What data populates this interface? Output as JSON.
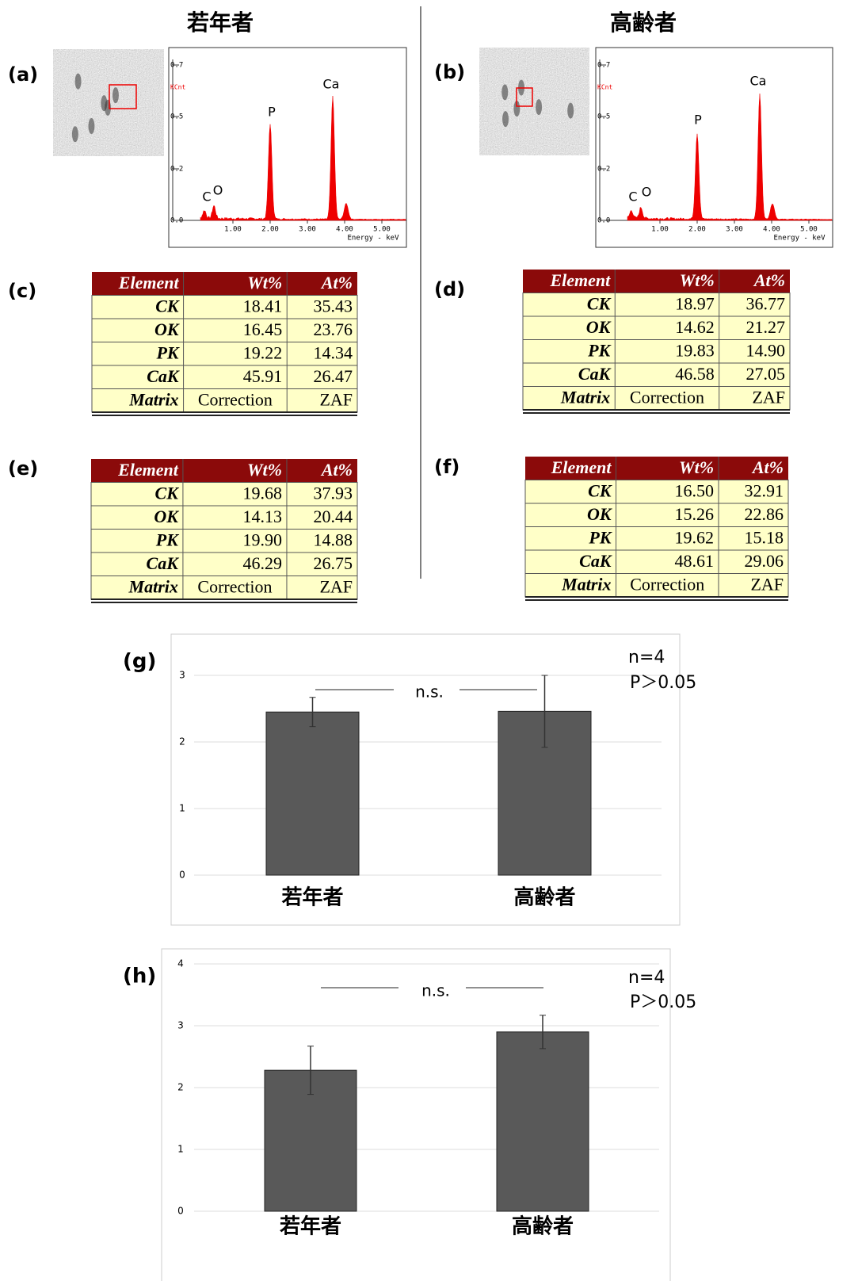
{
  "headers": [
    "若年者",
    "高齢者"
  ],
  "panels": [
    {
      "label": "(a)",
      "spectrum": {
        "ylabel": "KCnt",
        "yticks": [
          "0.7",
          "0.5",
          "0.2",
          "0.0"
        ],
        "xticks": [
          "1.00",
          "2.00",
          "3.00",
          "4.00",
          "5.00"
        ],
        "xlabel": "Energy - keV",
        "peaks": [
          "C",
          "O",
          "P",
          "Ca"
        ]
      }
    },
    {
      "label": "(b)",
      "spectrum": {
        "ylabel": "KCnt",
        "yticks": [
          "0.7",
          "0.5",
          "0.2",
          "0.0"
        ],
        "xticks": [
          "1.00",
          "2.00",
          "3.00",
          "4.00",
          "5.00"
        ],
        "xlabel": "Energy - keV",
        "peaks": [
          "C",
          "O",
          "P",
          "Ca"
        ]
      }
    }
  ],
  "tables": [
    {
      "label": "(c)",
      "columns": [
        "Element",
        "Wt%",
        "At%"
      ],
      "rows": [
        [
          "CK",
          "18.41",
          "35.43"
        ],
        [
          "OK",
          "16.45",
          "23.76"
        ],
        [
          "PK",
          "19.22",
          "14.34"
        ],
        [
          "CaK",
          "45.91",
          "26.47"
        ],
        [
          "Matrix",
          "Correction",
          "ZAF"
        ]
      ]
    },
    {
      "label": "(d)",
      "columns": [
        "Element",
        "Wt%",
        "At%"
      ],
      "rows": [
        [
          "CK",
          "18.97",
          "36.77"
        ],
        [
          "OK",
          "14.62",
          "21.27"
        ],
        [
          "PK",
          "19.83",
          "14.90"
        ],
        [
          "CaK",
          "46.58",
          "27.05"
        ],
        [
          "Matrix",
          "Correction",
          "ZAF"
        ]
      ]
    },
    {
      "label": "(e)",
      "columns": [
        "Element",
        "Wt%",
        "At%"
      ],
      "rows": [
        [
          "CK",
          "19.68",
          "37.93"
        ],
        [
          "OK",
          "14.13",
          "20.44"
        ],
        [
          "PK",
          "19.90",
          "14.88"
        ],
        [
          "CaK",
          "46.29",
          "26.75"
        ],
        [
          "Matrix",
          "Correction",
          "ZAF"
        ]
      ]
    },
    {
      "label": "(f)",
      "columns": [
        "Element",
        "Wt%",
        "At%"
      ],
      "rows": [
        [
          "CK",
          "16.50",
          "32.91"
        ],
        [
          "OK",
          "15.26",
          "22.86"
        ],
        [
          "PK",
          "19.62",
          "15.18"
        ],
        [
          "CaK",
          "48.61",
          "29.06"
        ],
        [
          "Matrix",
          "Correction",
          "ZAF"
        ]
      ]
    }
  ],
  "chart_data": [
    {
      "type": "bar",
      "label": "(g)",
      "categories": [
        "若年者",
        "高齢者"
      ],
      "series": [
        {
          "color": "#595959",
          "values": [
            2.45,
            2.46
          ],
          "errors": [
            0.22,
            0.54
          ]
        }
      ],
      "ylim": [
        0,
        3.4
      ],
      "yticks": [
        0,
        1,
        2,
        3
      ],
      "grid": true,
      "annotations": [
        "n.s.",
        "n=4",
        "P＞0.05"
      ]
    },
    {
      "type": "bar",
      "label": "(h)",
      "categories": [
        "若年者",
        "高齢者"
      ],
      "series": [
        {
          "color": "#595959",
          "values": [
            2.28,
            2.9
          ],
          "errors": [
            0.39,
            0.27
          ]
        }
      ],
      "ylim": [
        0,
        4.1
      ],
      "yticks": [
        0,
        1,
        2,
        3,
        4
      ],
      "grid": true,
      "annotations": [
        "n.s.",
        "n=4",
        "P＞0.05"
      ]
    }
  ]
}
